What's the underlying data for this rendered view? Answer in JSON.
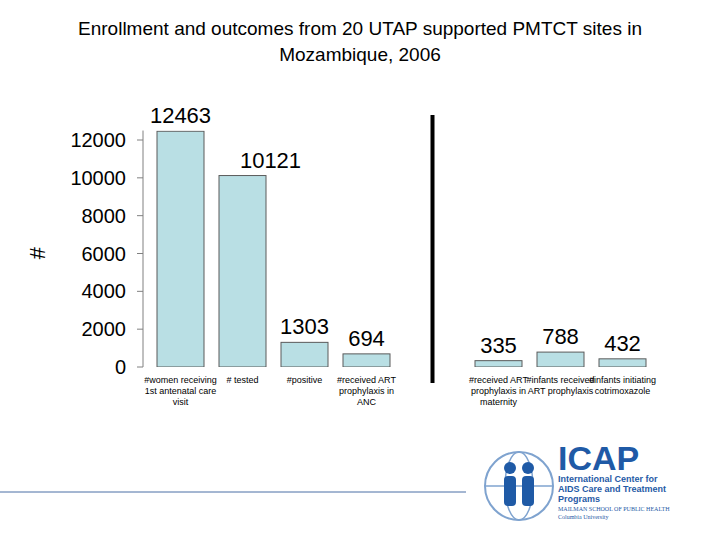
{
  "chart_data": {
    "type": "bar",
    "title": "Enrollment and outcomes from 20 UTAP supported PMTCT sites in Mozambique, 2006",
    "y_label": "#",
    "categories": [
      "#women receiving 1st antenatal care visit",
      "# tested",
      "#positive",
      "#received ART prophylaxis in ANC",
      "#received ART prophylaxis in maternity",
      "#infants received ART prophylaxis",
      "#infants initiating cotrimoxazole"
    ],
    "values": [
      12463,
      10121,
      1303,
      694,
      335,
      788,
      432
    ],
    "color": "#b9dfe4",
    "ylim": [
      0,
      12500
    ],
    "yticks": [
      0,
      2000,
      4000,
      6000,
      8000,
      10000,
      12000
    ],
    "grid": false,
    "data_labels": true
  },
  "logo": {
    "title": "ICAP",
    "subtitle": "International Center for AIDS Care and Treatment Programs",
    "school": "MAILMAN SCHOOL OF PUBLIC HEALTH",
    "university": "Columbia University"
  }
}
